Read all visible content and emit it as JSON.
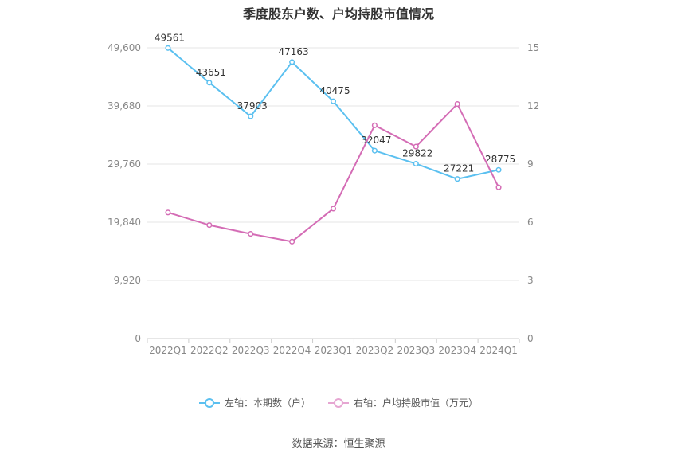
{
  "chart_data": {
    "type": "line",
    "title": "季度股东户数、户均持股市值情况",
    "categories": [
      "2022Q1",
      "2022Q2",
      "2022Q3",
      "2022Q4",
      "2023Q1",
      "2023Q2",
      "2023Q3",
      "2023Q4",
      "2024Q1"
    ],
    "left_axis": {
      "ticks": [
        "0",
        "9,920",
        "19,840",
        "29,760",
        "39,680",
        "49,600"
      ],
      "max": 49600
    },
    "right_axis": {
      "ticks": [
        "0",
        "3",
        "6",
        "9",
        "12",
        "15"
      ],
      "max": 15
    },
    "grid": true,
    "legend_position": "bottom",
    "series": [
      {
        "name": "左轴：本期数（户）",
        "axis": "left",
        "color": "#5bc0f0",
        "values": [
          49561,
          43651,
          37903,
          47163,
          40475,
          32047,
          29822,
          27221,
          28775
        ],
        "labels": [
          "49561",
          "43651",
          "37903",
          "47163",
          "40475",
          "32047",
          "29822",
          "27221",
          "28775"
        ]
      },
      {
        "name": "右轴：户均持股市值（万元）",
        "axis": "right",
        "color": "#d46cb5",
        "values": [
          6.5,
          5.85,
          5.4,
          5.0,
          6.7,
          11.0,
          9.9,
          12.1,
          7.8
        ]
      }
    ]
  },
  "source": "数据来源：恒生聚源"
}
